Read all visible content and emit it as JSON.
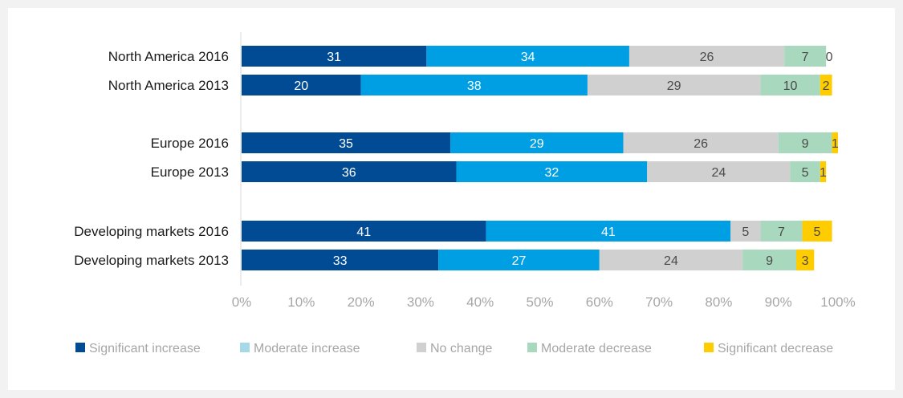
{
  "chart_data": {
    "type": "bar",
    "orientation": "horizontal",
    "stacked": true,
    "title": "",
    "xlabel": "",
    "ylabel": "",
    "xlim": [
      0,
      100
    ],
    "x_ticks": [
      "0%",
      "10%",
      "20%",
      "30%",
      "40%",
      "50%",
      "60%",
      "70%",
      "80%",
      "90%",
      "100%"
    ],
    "grid": false,
    "legend_position": "bottom",
    "categories": [
      "North America 2016",
      "North America 2013",
      "Europe 2016",
      "Europe 2013",
      "Developing markets 2016",
      "Developing markets 2013"
    ],
    "series": [
      {
        "name": "Significant increase",
        "color": "#004b93",
        "label_color": "#ffffff",
        "values": [
          31,
          20,
          35,
          36,
          41,
          33
        ]
      },
      {
        "name": "Moderate increase",
        "color": "#009fe3",
        "label_color": "#ffffff",
        "values": [
          34,
          38,
          29,
          32,
          41,
          27
        ]
      },
      {
        "name": "No change",
        "color": "#d0d0d0",
        "label_color": "#4a4a4a",
        "values": [
          26,
          29,
          26,
          24,
          5,
          24
        ]
      },
      {
        "name": "Moderate decrease",
        "color": "#a8d8bd",
        "label_color": "#4a4a4a",
        "values": [
          7,
          10,
          9,
          5,
          7,
          9
        ]
      },
      {
        "name": "Significant decrease",
        "color": "#ffcc00",
        "label_color": "#4a4a4a",
        "values": [
          0,
          2,
          1,
          1,
          5,
          3
        ]
      }
    ],
    "legend_swatch_colors": [
      "#004b93",
      "#a6d8e8",
      "#d0d0d0",
      "#a8d8bd",
      "#ffcc00"
    ]
  }
}
